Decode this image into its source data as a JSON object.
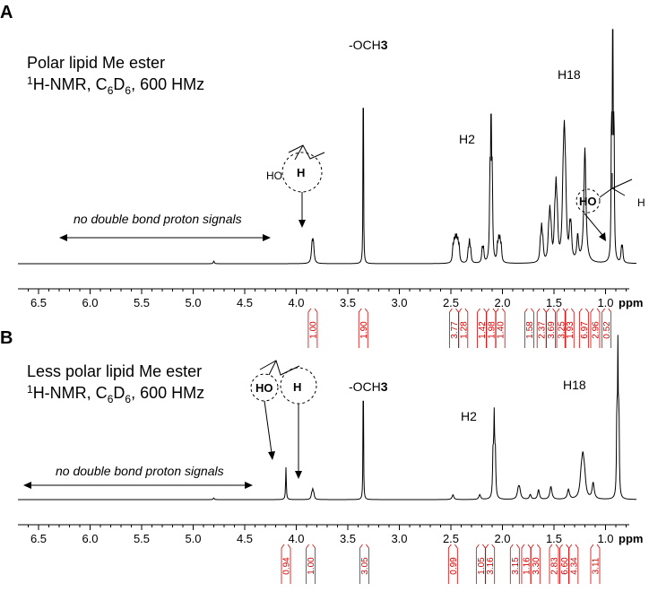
{
  "chart_data": [
    {
      "panel": "A",
      "type": "line",
      "title_lines": [
        "Polar lipid Me ester",
        "1H-NMR, C6D6, 600 HMz"
      ],
      "xlabel": "ppm",
      "xlim": [
        6.7,
        0.7
      ],
      "ticks": [
        6.5,
        6.0,
        5.5,
        5.0,
        4.5,
        4.0,
        3.5,
        3.0,
        2.5,
        2.0,
        1.5,
        1.0
      ],
      "tick_labels": [
        "6.5",
        "6.0",
        "5.5",
        "5.0",
        "4.5",
        "4.0",
        "3.5",
        "3.0",
        "2.5",
        "2.0",
        "1.5",
        "1.0"
      ],
      "peaks": [
        {
          "ppm": 4.8,
          "h": 0.01,
          "w": 0.006
        },
        {
          "ppm": 3.84,
          "h": 0.08,
          "w": 0.008,
          "mult": 2,
          "sep": 0.012
        },
        {
          "ppm": 3.35,
          "h": 1.0,
          "w": 0.0025
        },
        {
          "ppm": 2.45,
          "h": 0.08,
          "w": 0.006,
          "mult": 6,
          "sep": 0.012
        },
        {
          "ppm": 2.32,
          "h": 0.08,
          "w": 0.006,
          "mult": 3,
          "sep": 0.012
        },
        {
          "ppm": 2.19,
          "h": 0.06,
          "w": 0.006,
          "mult": 2,
          "sep": 0.012
        },
        {
          "ppm": 2.11,
          "h": 0.55,
          "w": 0.005,
          "mult": 3,
          "sep": 0.011
        },
        {
          "ppm": 2.03,
          "h": 0.08,
          "w": 0.006,
          "mult": 4,
          "sep": 0.012
        },
        {
          "ppm": 1.62,
          "h": 0.12,
          "w": 0.007,
          "mult": 3,
          "sep": 0.012
        },
        {
          "ppm": 1.54,
          "h": 0.16,
          "w": 0.008,
          "mult": 3,
          "sep": 0.012
        },
        {
          "ppm": 1.48,
          "h": 0.24,
          "w": 0.008,
          "mult": 3,
          "sep": 0.012
        },
        {
          "ppm": 1.4,
          "h": 0.38,
          "w": 0.01,
          "mult": 3,
          "sep": 0.012
        },
        {
          "ppm": 1.34,
          "h": 0.12,
          "w": 0.008,
          "mult": 2,
          "sep": 0.012
        },
        {
          "ppm": 1.27,
          "h": 0.1,
          "w": 0.01
        },
        {
          "ppm": 1.2,
          "h": 0.45,
          "w": 0.012
        },
        {
          "ppm": 0.93,
          "h": 1.0,
          "w": 0.004,
          "mult": 3,
          "sep": 0.012
        },
        {
          "ppm": 0.84,
          "h": 0.06,
          "w": 0.006,
          "mult": 2,
          "sep": 0.01
        }
      ],
      "integrals": [
        {
          "ppm": 3.84,
          "value": "1.00"
        },
        {
          "ppm": 3.35,
          "value": "1.90"
        },
        {
          "ppm": 2.47,
          "value": "3.77"
        },
        {
          "ppm": 2.38,
          "value": "1.28"
        },
        {
          "ppm": 2.2,
          "value": "1.42"
        },
        {
          "ppm": 2.11,
          "value": "1.98"
        },
        {
          "ppm": 2.02,
          "value": "1.40"
        },
        {
          "ppm": 1.74,
          "value": "1.58"
        },
        {
          "ppm": 1.62,
          "value": "2.37"
        },
        {
          "ppm": 1.53,
          "value": "3.69"
        },
        {
          "ppm": 1.43,
          "value": "3.25"
        },
        {
          "ppm": 1.35,
          "value": "1.93"
        },
        {
          "ppm": 1.21,
          "value": "6.97"
        },
        {
          "ppm": 1.1,
          "value": "2.96"
        },
        {
          "ppm": 0.99,
          "value": "0.52"
        }
      ],
      "annotations": {
        "och3": "-OCH",
        "och3_sub": "3",
        "h2": "H2",
        "h18": "H18",
        "no_double_bond": "no double bond proton signals"
      }
    },
    {
      "panel": "B",
      "type": "line",
      "title_lines": [
        "Less polar lipid Me ester",
        "1H-NMR, C6D6, 600 HMz"
      ],
      "xlabel": "ppm",
      "xlim": [
        6.7,
        0.7
      ],
      "ticks": [
        6.5,
        6.0,
        5.5,
        5.0,
        4.5,
        4.0,
        3.5,
        3.0,
        2.5,
        2.0,
        1.5,
        1.0
      ],
      "tick_labels": [
        "6.5",
        "6.0",
        "5.5",
        "5.0",
        "4.5",
        "4.0",
        "3.5",
        "3.0",
        "2.5",
        "2.0",
        "1.5",
        "1.0"
      ],
      "peaks": [
        {
          "ppm": 4.8,
          "h": 0.01,
          "w": 0.006
        },
        {
          "ppm": 4.1,
          "h": 0.2,
          "w": 0.004
        },
        {
          "ppm": 3.84,
          "h": 0.05,
          "w": 0.007,
          "mult": 3,
          "sep": 0.01
        },
        {
          "ppm": 3.35,
          "h": 1.0,
          "w": 0.0025
        },
        {
          "ppm": 2.48,
          "h": 0.03,
          "w": 0.01
        },
        {
          "ppm": 2.22,
          "h": 0.03,
          "w": 0.01
        },
        {
          "ppm": 2.08,
          "h": 0.48,
          "w": 0.005,
          "mult": 3,
          "sep": 0.011
        },
        {
          "ppm": 1.84,
          "h": 0.06,
          "w": 0.012,
          "mult": 2,
          "sep": 0.012
        },
        {
          "ppm": 1.73,
          "h": 0.03,
          "w": 0.01
        },
        {
          "ppm": 1.65,
          "h": 0.06,
          "w": 0.01
        },
        {
          "ppm": 1.53,
          "h": 0.08,
          "w": 0.012
        },
        {
          "ppm": 1.36,
          "h": 0.06,
          "w": 0.012
        },
        {
          "ppm": 1.22,
          "h": 0.2,
          "w": 0.014,
          "mult": 3,
          "sep": 0.016
        },
        {
          "ppm": 1.12,
          "h": 0.1,
          "w": 0.012
        },
        {
          "ppm": 0.88,
          "h": 0.93,
          "w": 0.004,
          "mult": 3,
          "sep": 0.01
        }
      ],
      "integrals": [
        {
          "ppm": 4.1,
          "value": "0.94"
        },
        {
          "ppm": 3.86,
          "value": "1.00"
        },
        {
          "ppm": 3.34,
          "value": "3.05"
        },
        {
          "ppm": 2.48,
          "value": "0.99"
        },
        {
          "ppm": 2.21,
          "value": "1.05"
        },
        {
          "ppm": 2.12,
          "value": "3.16"
        },
        {
          "ppm": 1.88,
          "value": "3.15"
        },
        {
          "ppm": 1.77,
          "value": "1.16"
        },
        {
          "ppm": 1.68,
          "value": "3.30"
        },
        {
          "ppm": 1.5,
          "value": "2.83"
        },
        {
          "ppm": 1.4,
          "value": "6.60"
        },
        {
          "ppm": 1.31,
          "value": "4.34"
        },
        {
          "ppm": 1.1,
          "value": "3.11"
        }
      ],
      "annotations": {
        "och3": "-OCH",
        "och3_sub": "3",
        "h2": "H2",
        "h18": "H18",
        "no_double_bond": "no double bond proton signals"
      }
    }
  ],
  "structures": {
    "ho": "HO",
    "h": "H"
  },
  "colors": {
    "spectrum": "#000000",
    "integral": "#d40000"
  }
}
